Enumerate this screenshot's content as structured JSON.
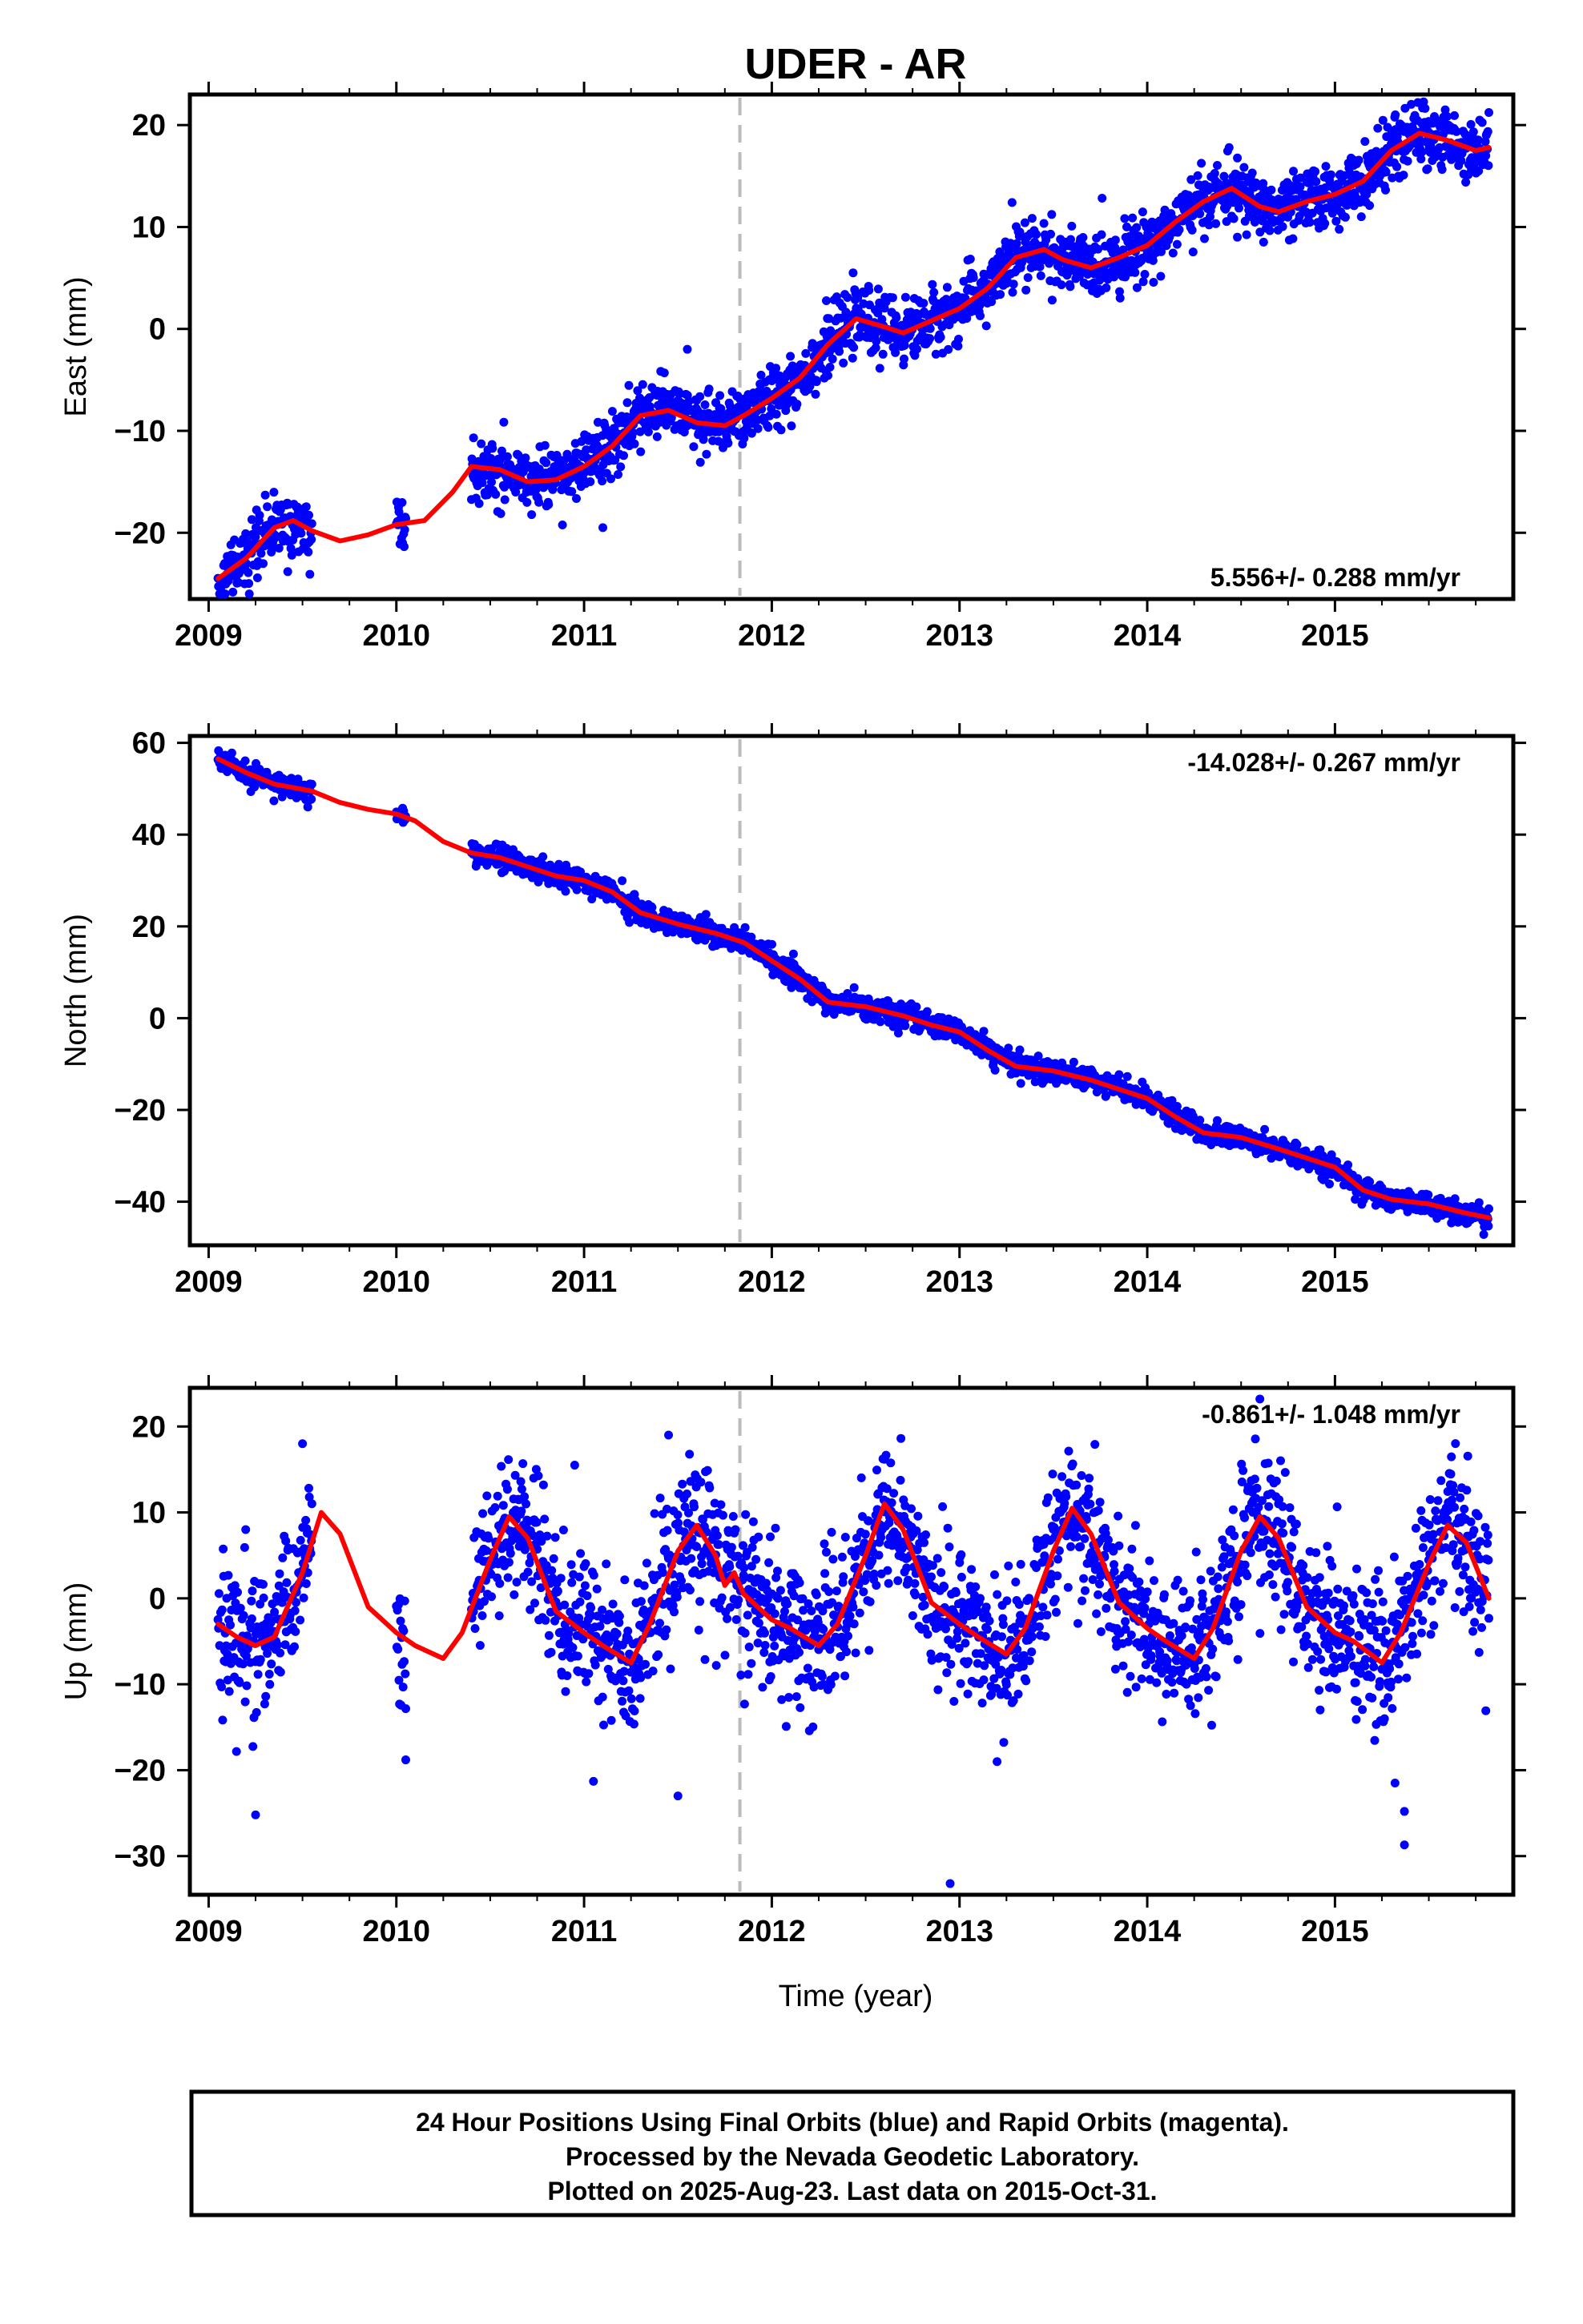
{
  "title": "UDER - AR",
  "xlabel": "Time (year)",
  "x_ticks": [
    "2009",
    "2010",
    "2011",
    "2012",
    "2013",
    "2014",
    "2015"
  ],
  "footer": [
    "24 Hour Positions Using Final Orbits (blue) and Rapid Orbits (magenta).",
    "Processed by the Nevada Geodetic Laboratory.",
    "Plotted on 2025-Aug-23. Last data on 2015-Oct-31."
  ],
  "colors": {
    "points": "#0000ff",
    "model": "#ff0000",
    "event_line": "#bbbbbb"
  },
  "chart_data": [
    {
      "type": "scatter",
      "ylabel": "East (mm)",
      "rate": "5.556+/- 0.288 mm/yr",
      "rate_position": "bottom-right",
      "xlim": [
        2008.9,
        2015.95
      ],
      "ylim": [
        -26.5,
        23
      ],
      "y_ticks": [
        -20,
        -10,
        0,
        10,
        20
      ],
      "event_line_x": 2011.83,
      "model_x": [
        2009.05,
        2009.2,
        2009.35,
        2009.45,
        2009.55,
        2009.7,
        2009.85,
        2010.0,
        2010.15,
        2010.3,
        2010.4,
        2010.55,
        2010.7,
        2010.85,
        2011.0,
        2011.15,
        2011.3,
        2011.45,
        2011.6,
        2011.75,
        2011.85,
        2012.0,
        2012.15,
        2012.3,
        2012.45,
        2012.6,
        2012.7,
        2012.85,
        2013.0,
        2013.15,
        2013.3,
        2013.45,
        2013.55,
        2013.7,
        2013.85,
        2014.0,
        2014.15,
        2014.3,
        2014.45,
        2014.6,
        2014.7,
        2014.85,
        2015.0,
        2015.15,
        2015.3,
        2015.45,
        2015.6,
        2015.75,
        2015.82
      ],
      "model_y": [
        -24.5,
        -22.5,
        -19.5,
        -18.8,
        -19.8,
        -20.8,
        -20.2,
        -19.2,
        -18.8,
        -16,
        -13.5,
        -13.8,
        -15,
        -14.8,
        -13.5,
        -11.5,
        -8.5,
        -8.0,
        -9.2,
        -9.5,
        -8.5,
        -6.8,
        -4.8,
        -1.5,
        1.0,
        0.2,
        -0.4,
        0.8,
        2.0,
        4.0,
        7.0,
        7.8,
        6.8,
        6.0,
        7.0,
        8.2,
        10.5,
        12.5,
        13.8,
        12.0,
        11.5,
        12.5,
        13.2,
        14.5,
        17.5,
        19.2,
        18.5,
        17.5,
        17.8
      ],
      "segments": [
        [
          2009.05,
          2009.55
        ],
        [
          2010.0,
          2010.05
        ],
        [
          2010.4,
          2015.82
        ]
      ],
      "scatter_sd": 1.5,
      "outliers": [
        [
          2011.1,
          -19.5
        ],
        [
          2013.28,
          12.4
        ],
        [
          2014.48,
          9.0
        ],
        [
          2011.55,
          -2.0
        ]
      ]
    },
    {
      "type": "scatter",
      "ylabel": "North (mm)",
      "rate": "-14.028+/- 0.267 mm/yr",
      "rate_position": "top-right",
      "xlim": [
        2008.9,
        2015.95
      ],
      "ylim": [
        -49.5,
        61.5
      ],
      "y_ticks": [
        -40,
        -20,
        0,
        20,
        40,
        60
      ],
      "event_line_x": 2011.83,
      "model_x": [
        2009.05,
        2009.2,
        2009.35,
        2009.55,
        2009.7,
        2009.85,
        2010.0,
        2010.1,
        2010.25,
        2010.4,
        2010.55,
        2010.7,
        2010.85,
        2011.0,
        2011.15,
        2011.3,
        2011.5,
        2011.7,
        2011.85,
        2012.0,
        2012.15,
        2012.3,
        2012.5,
        2012.7,
        2012.85,
        2013.0,
        2013.15,
        2013.3,
        2013.5,
        2013.7,
        2013.85,
        2014.0,
        2014.15,
        2014.3,
        2014.5,
        2014.7,
        2014.85,
        2015.0,
        2015.15,
        2015.3,
        2015.5,
        2015.7,
        2015.82
      ],
      "model_y": [
        56.5,
        53.5,
        51.0,
        49.5,
        47.0,
        45.5,
        44.5,
        43.0,
        38.5,
        36.0,
        35.0,
        33.0,
        31.0,
        30.0,
        27.5,
        23.0,
        20.5,
        18.5,
        16.5,
        12.5,
        8.5,
        3.5,
        2.5,
        0.5,
        -1.5,
        -3.0,
        -7.0,
        -10.5,
        -11.5,
        -13.5,
        -15.5,
        -17.5,
        -21.5,
        -25.0,
        -26.0,
        -28.5,
        -30.5,
        -32.5,
        -37.5,
        -39.5,
        -40.5,
        -42.5,
        -43.5
      ],
      "segments": [
        [
          2009.05,
          2009.55
        ],
        [
          2010.0,
          2010.05
        ],
        [
          2010.4,
          2015.82
        ]
      ],
      "scatter_sd": 1.2,
      "outliers": []
    },
    {
      "type": "scatter",
      "ylabel": "Up (mm)",
      "rate": "-0.861+/- 1.048 mm/yr",
      "rate_position": "top-right",
      "xlim": [
        2008.9,
        2015.95
      ],
      "ylim": [
        -34.5,
        24.5
      ],
      "y_ticks": [
        -30,
        -20,
        -10,
        0,
        10,
        20
      ],
      "event_line_x": 2011.83,
      "model_x": [
        2009.05,
        2009.15,
        2009.25,
        2009.35,
        2009.5,
        2009.6,
        2009.7,
        2009.85,
        2010.0,
        2010.1,
        2010.25,
        2010.35,
        2010.5,
        2010.6,
        2010.7,
        2010.85,
        2011.0,
        2011.1,
        2011.25,
        2011.35,
        2011.5,
        2011.6,
        2011.7,
        2011.75,
        2011.8,
        2011.85,
        2012.0,
        2012.1,
        2012.25,
        2012.35,
        2012.5,
        2012.6,
        2012.7,
        2012.85,
        2013.0,
        2013.1,
        2013.25,
        2013.35,
        2013.5,
        2013.6,
        2013.7,
        2013.85,
        2014.0,
        2014.1,
        2014.25,
        2014.35,
        2014.5,
        2014.6,
        2014.7,
        2014.85,
        2015.0,
        2015.1,
        2015.25,
        2015.35,
        2015.5,
        2015.6,
        2015.7,
        2015.82
      ],
      "model_y": [
        -3.0,
        -4.5,
        -5.5,
        -4.5,
        3.0,
        10.0,
        7.5,
        -1.0,
        -4.0,
        -5.5,
        -7.0,
        -4.0,
        4.5,
        9.5,
        7.0,
        -1.5,
        -4.0,
        -5.5,
        -7.5,
        -3.0,
        5.5,
        8.5,
        5.0,
        1.5,
        3.0,
        0.5,
        -2.5,
        -3.5,
        -5.5,
        -3.0,
        5.0,
        11.0,
        8.0,
        -0.5,
        -3.0,
        -4.5,
        -6.5,
        -3.5,
        5.5,
        10.5,
        7.5,
        -0.5,
        -3.5,
        -5.0,
        -7.0,
        -3.5,
        5.5,
        9.5,
        7.0,
        -1.0,
        -4.0,
        -5.0,
        -7.5,
        -4.0,
        4.0,
        8.5,
        6.5,
        0.0
      ],
      "segments": [
        [
          2009.05,
          2009.55
        ],
        [
          2010.0,
          2010.05
        ],
        [
          2010.4,
          2015.82
        ]
      ],
      "scatter_sd": 4.2,
      "outliers": [
        [
          2009.25,
          -25.2
        ],
        [
          2010.05,
          -18.8
        ],
        [
          2011.5,
          -23.0
        ],
        [
          2011.05,
          -21.3
        ],
        [
          2012.95,
          -33.2
        ],
        [
          2015.37,
          -28.7
        ],
        [
          2014.6,
          23.2
        ],
        [
          2015.32,
          -21.5
        ],
        [
          2015.37,
          -24.8
        ],
        [
          2010.95,
          15.5
        ],
        [
          2011.45,
          19.0
        ],
        [
          2009.5,
          18.0
        ],
        [
          2013.2,
          -19.0
        ]
      ]
    }
  ]
}
